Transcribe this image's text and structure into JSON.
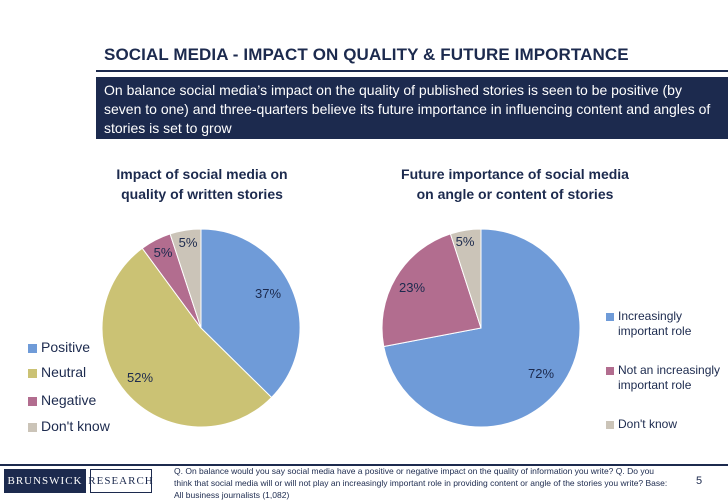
{
  "header": {
    "title": "SOCIAL MEDIA - IMPACT ON QUALITY & FUTURE IMPORTANCE",
    "subtitle": "On balance social media’s impact on the quality of published stories is seen to be positive (by seven to one) and three-quarters believe its future importance in influencing content and angles of stories is set to grow"
  },
  "chart_data": [
    {
      "type": "pie",
      "title_line1": "Impact of social media on",
      "title_line2": "quality of written stories",
      "categories": [
        "Positive",
        "Neutral",
        "Negative",
        "Don't know"
      ],
      "values": [
        37,
        52,
        5,
        5
      ],
      "labels": [
        "37%",
        "52%",
        "5%",
        "5%"
      ],
      "colors": [
        "#6f9bd8",
        "#cbc274",
        "#b26d8f",
        "#cbc4b8"
      ],
      "legend_position": "left"
    },
    {
      "type": "pie",
      "title_line1": "Future importance of social media",
      "title_line2": "on angle or content of stories",
      "categories": [
        "Increasingly important role",
        "Not an increasingly important role",
        "Don't know"
      ],
      "values": [
        72,
        23,
        5
      ],
      "labels": [
        "72%",
        "23%",
        "5%"
      ],
      "colors": [
        "#6f9bd8",
        "#b26d8f",
        "#cbc4b8"
      ],
      "legend_position": "right"
    }
  ],
  "footer": {
    "brand_left": "BRUNSWICK",
    "brand_right": "RESEARCH",
    "question_text": "Q. On balance would you say social media have a positive or negative impact on the quality of information you write? Q. Do you think that social media will or will not play an increasingly important role in providing content or angle of the stories you write? Base: All business journalists (1,082)",
    "page_number": "5"
  }
}
